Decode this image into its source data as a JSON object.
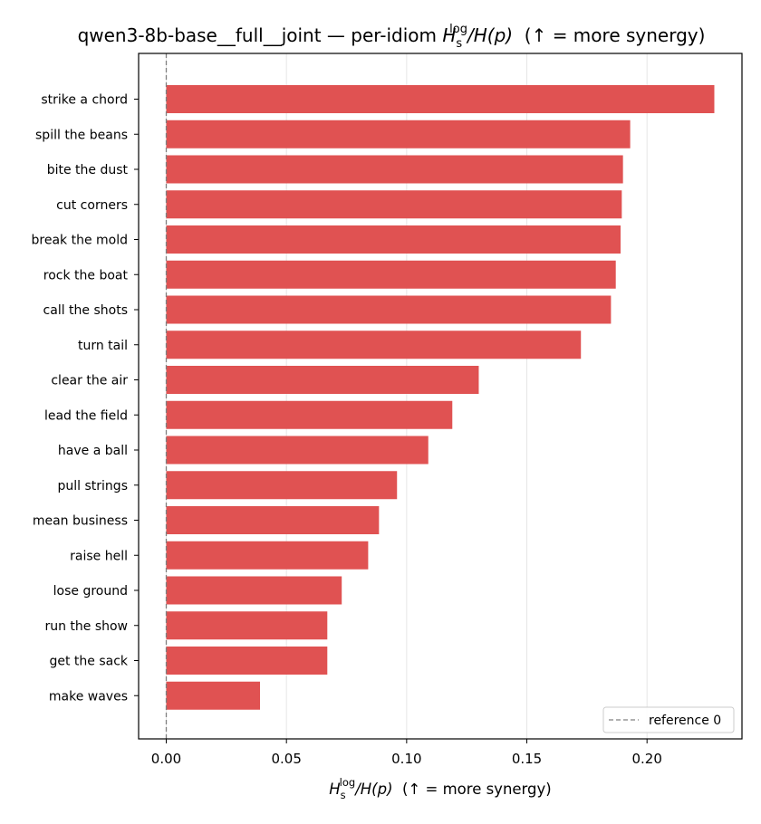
{
  "chart_data": {
    "type": "bar",
    "orientation": "horizontal",
    "title": {
      "main": "qwen3-8b-base__full__joint — per-idiom ",
      "metric_H": "H",
      "metric_sub": "s",
      "metric_sup": "log",
      "metric_rest": "/H(p)",
      "suffix": "  (↑ = more synergy)"
    },
    "xlabel": {
      "H": "H",
      "sub": "s",
      "sup": "log",
      "rest": "/H(p)",
      "suffix": "  (↑ = more synergy)"
    },
    "categories": [
      "strike a chord",
      "spill the beans",
      "bite the dust",
      "cut corners",
      "break the mold",
      "rock the boat",
      "call the shots",
      "turn tail",
      "clear the air",
      "lead the field",
      "have a ball",
      "pull strings",
      "mean business",
      "raise hell",
      "lose ground",
      "run the show",
      "get the sack",
      "make waves"
    ],
    "values": [
      0.228,
      0.193,
      0.19,
      0.1895,
      0.189,
      0.187,
      0.185,
      0.1725,
      0.13,
      0.119,
      0.109,
      0.096,
      0.0885,
      0.084,
      0.073,
      0.067,
      0.067,
      0.039
    ],
    "xlim": [
      -0.0115,
      0.2395
    ],
    "xticks": [
      "0.00",
      "0.05",
      "0.10",
      "0.15",
      "0.20"
    ],
    "xtick_values": [
      0,
      0.05,
      0.1,
      0.15,
      0.2
    ],
    "bar_color": "#e05252",
    "reference_line": {
      "x": 0,
      "label": "reference 0",
      "color": "#808080",
      "style": "dashed"
    },
    "grid": "vertical",
    "legend": {
      "position": "bottom-right"
    }
  }
}
